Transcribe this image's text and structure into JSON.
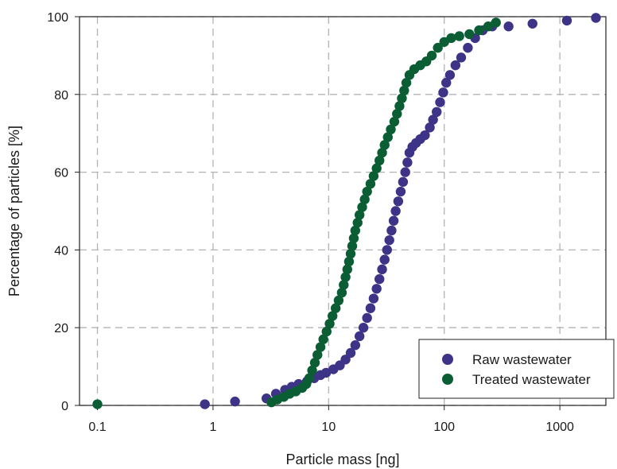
{
  "chart_data": {
    "type": "scatter",
    "title": "",
    "xlabel": "Particle mass [ng]",
    "ylabel": "Percentage of particles [%]",
    "x_scale": "log",
    "xlim": [
      0.07,
      2500
    ],
    "ylim": [
      0,
      100
    ],
    "x_ticks": [
      0.1,
      1,
      10,
      100,
      1000
    ],
    "x_tick_labels": [
      "0.1",
      "1",
      "10",
      "100",
      "1000"
    ],
    "y_ticks": [
      0,
      20,
      40,
      60,
      80,
      100
    ],
    "y_tick_labels": [
      "0",
      "20",
      "40",
      "60",
      "80",
      "100"
    ],
    "grid": true,
    "legend_position": "lower-right",
    "series": [
      {
        "name": "Raw wastewater",
        "color": "#3d3387",
        "points": [
          [
            0.85,
            0.3
          ],
          [
            1.55,
            1.0
          ],
          [
            2.9,
            1.8
          ],
          [
            3.5,
            3.0
          ],
          [
            4.2,
            4.0
          ],
          [
            4.8,
            4.8
          ],
          [
            5.5,
            5.5
          ],
          [
            6.5,
            6.2
          ],
          [
            7.5,
            7.0
          ],
          [
            8.5,
            7.8
          ],
          [
            9.5,
            8.4
          ],
          [
            11,
            9.3
          ],
          [
            12.5,
            10.3
          ],
          [
            14,
            11.8
          ],
          [
            15.5,
            13.5
          ],
          [
            17,
            15.5
          ],
          [
            18.5,
            17.8
          ],
          [
            20,
            20.0
          ],
          [
            21.5,
            22.5
          ],
          [
            23,
            25.0
          ],
          [
            24.5,
            27.5
          ],
          [
            26,
            30.0
          ],
          [
            27.5,
            32.5
          ],
          [
            29,
            35.0
          ],
          [
            30.5,
            37.5
          ],
          [
            32,
            40.0
          ],
          [
            33.5,
            42.5
          ],
          [
            35,
            45.0
          ],
          [
            36.5,
            47.5
          ],
          [
            38,
            50.0
          ],
          [
            40,
            52.5
          ],
          [
            42,
            55.0
          ],
          [
            44,
            57.5
          ],
          [
            46,
            60.0
          ],
          [
            48,
            62.5
          ],
          [
            50,
            65.0
          ],
          [
            53,
            66.5
          ],
          [
            57,
            67.5
          ],
          [
            62,
            68.5
          ],
          [
            68,
            69.5
          ],
          [
            75,
            71.5
          ],
          [
            80,
            73.5
          ],
          [
            86,
            75.5
          ],
          [
            92,
            78.0
          ],
          [
            98,
            80.5
          ],
          [
            104,
            83.0
          ],
          [
            112,
            85.0
          ],
          [
            125,
            87.5
          ],
          [
            140,
            89.5
          ],
          [
            160,
            92.0
          ],
          [
            185,
            94.5
          ],
          [
            215,
            96.5
          ],
          [
            260,
            97.5
          ],
          [
            360,
            97.5
          ],
          [
            580,
            98.2
          ],
          [
            1150,
            99.0
          ],
          [
            2050,
            99.7
          ]
        ]
      },
      {
        "name": "Treated wastewater",
        "color": "#0b5e34",
        "points": [
          [
            0.1,
            0.3
          ],
          [
            3.2,
            0.8
          ],
          [
            3.6,
            1.5
          ],
          [
            4.1,
            2.2
          ],
          [
            4.6,
            3.0
          ],
          [
            5.2,
            3.6
          ],
          [
            5.9,
            4.5
          ],
          [
            6.4,
            5.5
          ],
          [
            6.8,
            7.0
          ],
          [
            7.2,
            9.0
          ],
          [
            7.6,
            11.0
          ],
          [
            8.0,
            13.0
          ],
          [
            8.5,
            15.0
          ],
          [
            9.0,
            17.0
          ],
          [
            9.6,
            19.0
          ],
          [
            10.2,
            21.0
          ],
          [
            10.8,
            23.0
          ],
          [
            11.5,
            25.0
          ],
          [
            12.2,
            27.0
          ],
          [
            13.0,
            29.0
          ],
          [
            13.5,
            31.0
          ],
          [
            14.0,
            33.0
          ],
          [
            14.5,
            35.0
          ],
          [
            15.0,
            37.0
          ],
          [
            15.5,
            39.0
          ],
          [
            16.0,
            41.0
          ],
          [
            16.5,
            43.0
          ],
          [
            17.0,
            45.0
          ],
          [
            17.8,
            47.0
          ],
          [
            18.5,
            49.0
          ],
          [
            19.5,
            51.0
          ],
          [
            20.5,
            53.0
          ],
          [
            21.5,
            55.0
          ],
          [
            23.0,
            57.0
          ],
          [
            24.5,
            59.0
          ],
          [
            26.0,
            61.0
          ],
          [
            27.5,
            63.0
          ],
          [
            29.0,
            65.0
          ],
          [
            30.5,
            67.0
          ],
          [
            32.5,
            69.0
          ],
          [
            34.5,
            71.0
          ],
          [
            37.0,
            73.0
          ],
          [
            39.0,
            75.0
          ],
          [
            41.0,
            77.0
          ],
          [
            43.0,
            79.0
          ],
          [
            45.0,
            81.0
          ],
          [
            47.0,
            83.0
          ],
          [
            50.0,
            85.0
          ],
          [
            55.0,
            86.5
          ],
          [
            62.0,
            87.5
          ],
          [
            70.0,
            88.5
          ],
          [
            78.0,
            90.0
          ],
          [
            88.0,
            92.0
          ],
          [
            100.0,
            93.5
          ],
          [
            115.0,
            94.5
          ],
          [
            135.0,
            95.0
          ],
          [
            165.0,
            95.5
          ],
          [
            200.0,
            96.5
          ],
          [
            240.0,
            97.5
          ],
          [
            280.0,
            98.5
          ]
        ]
      }
    ]
  }
}
